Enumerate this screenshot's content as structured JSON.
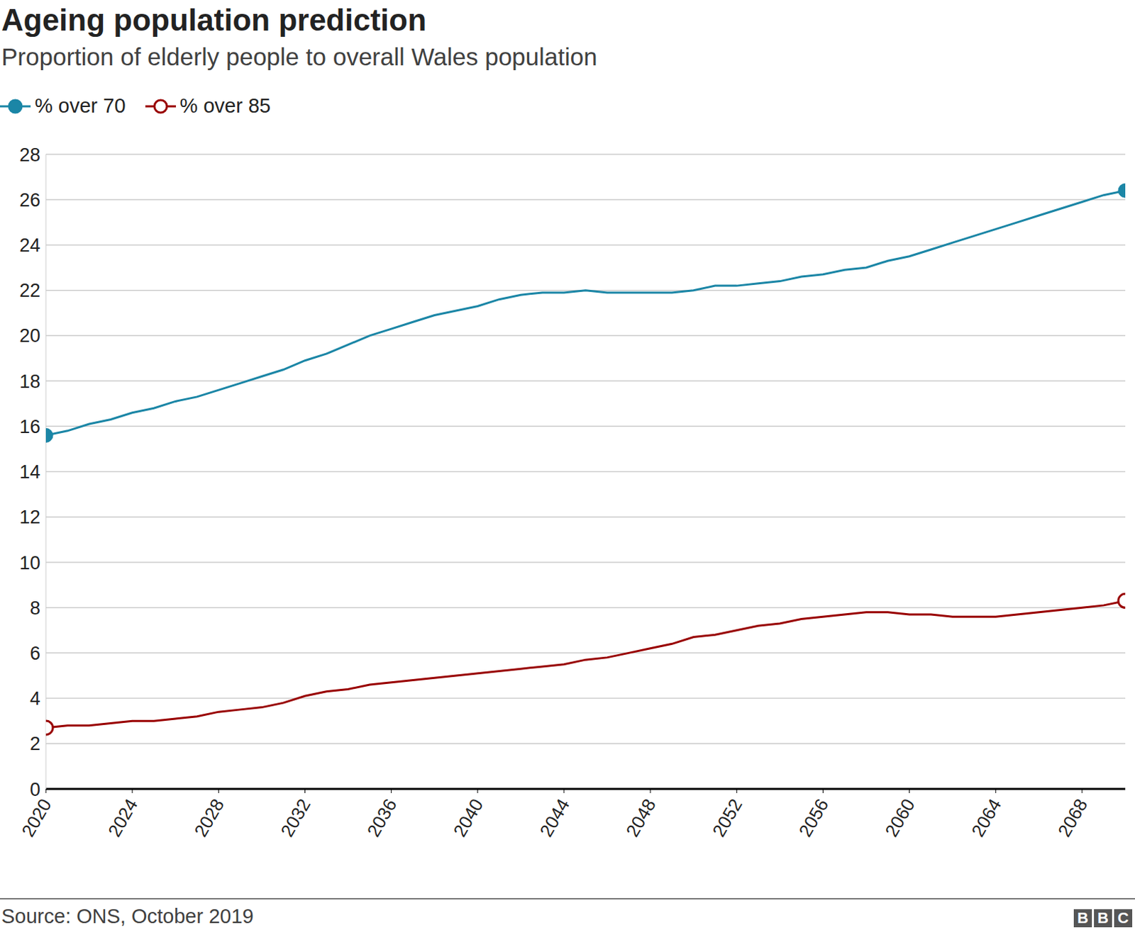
{
  "chart_data": {
    "type": "line",
    "title": "Ageing population prediction",
    "subtitle": "Proportion of elderly people to overall Wales population",
    "source": "Source: ONS, October 2019",
    "logo": "BBC",
    "x": [
      2020,
      2021,
      2022,
      2023,
      2024,
      2025,
      2026,
      2027,
      2028,
      2029,
      2030,
      2031,
      2032,
      2033,
      2034,
      2035,
      2036,
      2037,
      2038,
      2039,
      2040,
      2041,
      2042,
      2043,
      2044,
      2045,
      2046,
      2047,
      2048,
      2049,
      2050,
      2051,
      2052,
      2053,
      2054,
      2055,
      2056,
      2057,
      2058,
      2059,
      2060,
      2061,
      2062,
      2063,
      2064,
      2065,
      2066,
      2067,
      2068,
      2069,
      2070
    ],
    "series": [
      {
        "name": "% over 70",
        "color": "#1b86a6",
        "marker": "endpoints-filled",
        "values": [
          15.6,
          15.8,
          16.1,
          16.3,
          16.6,
          16.8,
          17.1,
          17.3,
          17.6,
          17.9,
          18.2,
          18.5,
          18.9,
          19.2,
          19.6,
          20.0,
          20.3,
          20.6,
          20.9,
          21.1,
          21.3,
          21.6,
          21.8,
          21.9,
          21.9,
          22.0,
          21.9,
          21.9,
          21.9,
          21.9,
          22.0,
          22.2,
          22.2,
          22.3,
          22.4,
          22.6,
          22.7,
          22.9,
          23.0,
          23.3,
          23.5,
          23.8,
          24.1,
          24.4,
          24.7,
          25.0,
          25.3,
          25.6,
          25.9,
          26.2,
          26.4
        ]
      },
      {
        "name": "% over 85",
        "color": "#990000",
        "marker": "endpoints-hollow",
        "values": [
          2.7,
          2.8,
          2.8,
          2.9,
          3.0,
          3.0,
          3.1,
          3.2,
          3.4,
          3.5,
          3.6,
          3.8,
          4.1,
          4.3,
          4.4,
          4.6,
          4.7,
          4.8,
          4.9,
          5.0,
          5.1,
          5.2,
          5.3,
          5.4,
          5.5,
          5.7,
          5.8,
          6.0,
          6.2,
          6.4,
          6.7,
          6.8,
          7.0,
          7.2,
          7.3,
          7.5,
          7.6,
          7.7,
          7.8,
          7.8,
          7.7,
          7.7,
          7.6,
          7.6,
          7.6,
          7.7,
          7.8,
          7.9,
          8.0,
          8.1,
          8.3
        ]
      }
    ],
    "xlim": [
      2020,
      2070
    ],
    "xticks": [
      2020,
      2024,
      2028,
      2032,
      2036,
      2040,
      2044,
      2048,
      2052,
      2056,
      2060,
      2064,
      2068
    ],
    "ylim": [
      0,
      28
    ],
    "yticks": [
      0,
      2,
      4,
      6,
      8,
      10,
      12,
      14,
      16,
      18,
      20,
      22,
      24,
      26,
      28
    ],
    "grid": true
  }
}
